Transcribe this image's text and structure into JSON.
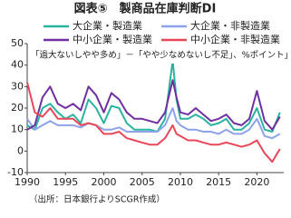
{
  "chart_data": {
    "type": "line",
    "title": "図表⑤　製商品在庫判断DI",
    "subtitle": "「過大ないしやや多め」－「やや少なめないし不足」、%ポイント」",
    "source": "（出所：日本銀行よりSCGR作成）",
    "x": [
      1990,
      1991,
      1992,
      1993,
      1994,
      1995,
      1996,
      1997,
      1998,
      1999,
      2000,
      2001,
      2002,
      2003,
      2004,
      2005,
      2006,
      2007,
      2008,
      2009,
      2009.5,
      2010,
      2011,
      2012,
      2013,
      2014,
      2015,
      2016,
      2017,
      2018,
      2019,
      2020,
      2021,
      2022,
      2023
    ],
    "series": [
      {
        "name": "大企業・製造業",
        "color": "#2bb3a0",
        "values": [
          12,
          10,
          20,
          22,
          18,
          15,
          17,
          13,
          24,
          20,
          13,
          21,
          20,
          13,
          10,
          10,
          10,
          9,
          15,
          42,
          24,
          15,
          15,
          17,
          15,
          12,
          13,
          15,
          10,
          10,
          13,
          20,
          10,
          9,
          18
        ]
      },
      {
        "name": "大企業・非製造業",
        "color": "#8ea2ea",
        "values": [
          15,
          10,
          12,
          14,
          12,
          12,
          12,
          11,
          13,
          12,
          10,
          10,
          11,
          9,
          9,
          9,
          9,
          9,
          12,
          20,
          14,
          12,
          10,
          10,
          9,
          9,
          8,
          10,
          8,
          8,
          10,
          15,
          7,
          6,
          8
        ]
      },
      {
        "name": "中小企業・製造業",
        "color": "#7030a0",
        "values": [
          10,
          12,
          25,
          30,
          22,
          20,
          22,
          19,
          30,
          26,
          18,
          27,
          24,
          18,
          15,
          15,
          14,
          13,
          18,
          33,
          25,
          18,
          17,
          20,
          17,
          14,
          15,
          17,
          13,
          12,
          15,
          28,
          14,
          10,
          16
        ]
      },
      {
        "name": "中小企業・非製造業",
        "color": "#e8475a",
        "values": [
          32,
          18,
          16,
          20,
          15,
          15,
          15,
          12,
          13,
          12,
          8,
          8,
          9,
          6,
          5,
          4,
          3,
          3,
          6,
          12,
          8,
          7,
          5,
          5,
          4,
          3,
          3,
          4,
          3,
          2,
          3,
          5,
          -1,
          -5,
          1
        ]
      }
    ],
    "xlim": [
      1990,
      2023.5
    ],
    "xticks": [
      1990,
      1995,
      2000,
      2005,
      2010,
      2015,
      2020
    ],
    "ylim": [
      -10,
      50
    ],
    "yticks": [
      -10,
      0,
      10,
      20,
      30,
      40,
      50
    ]
  }
}
